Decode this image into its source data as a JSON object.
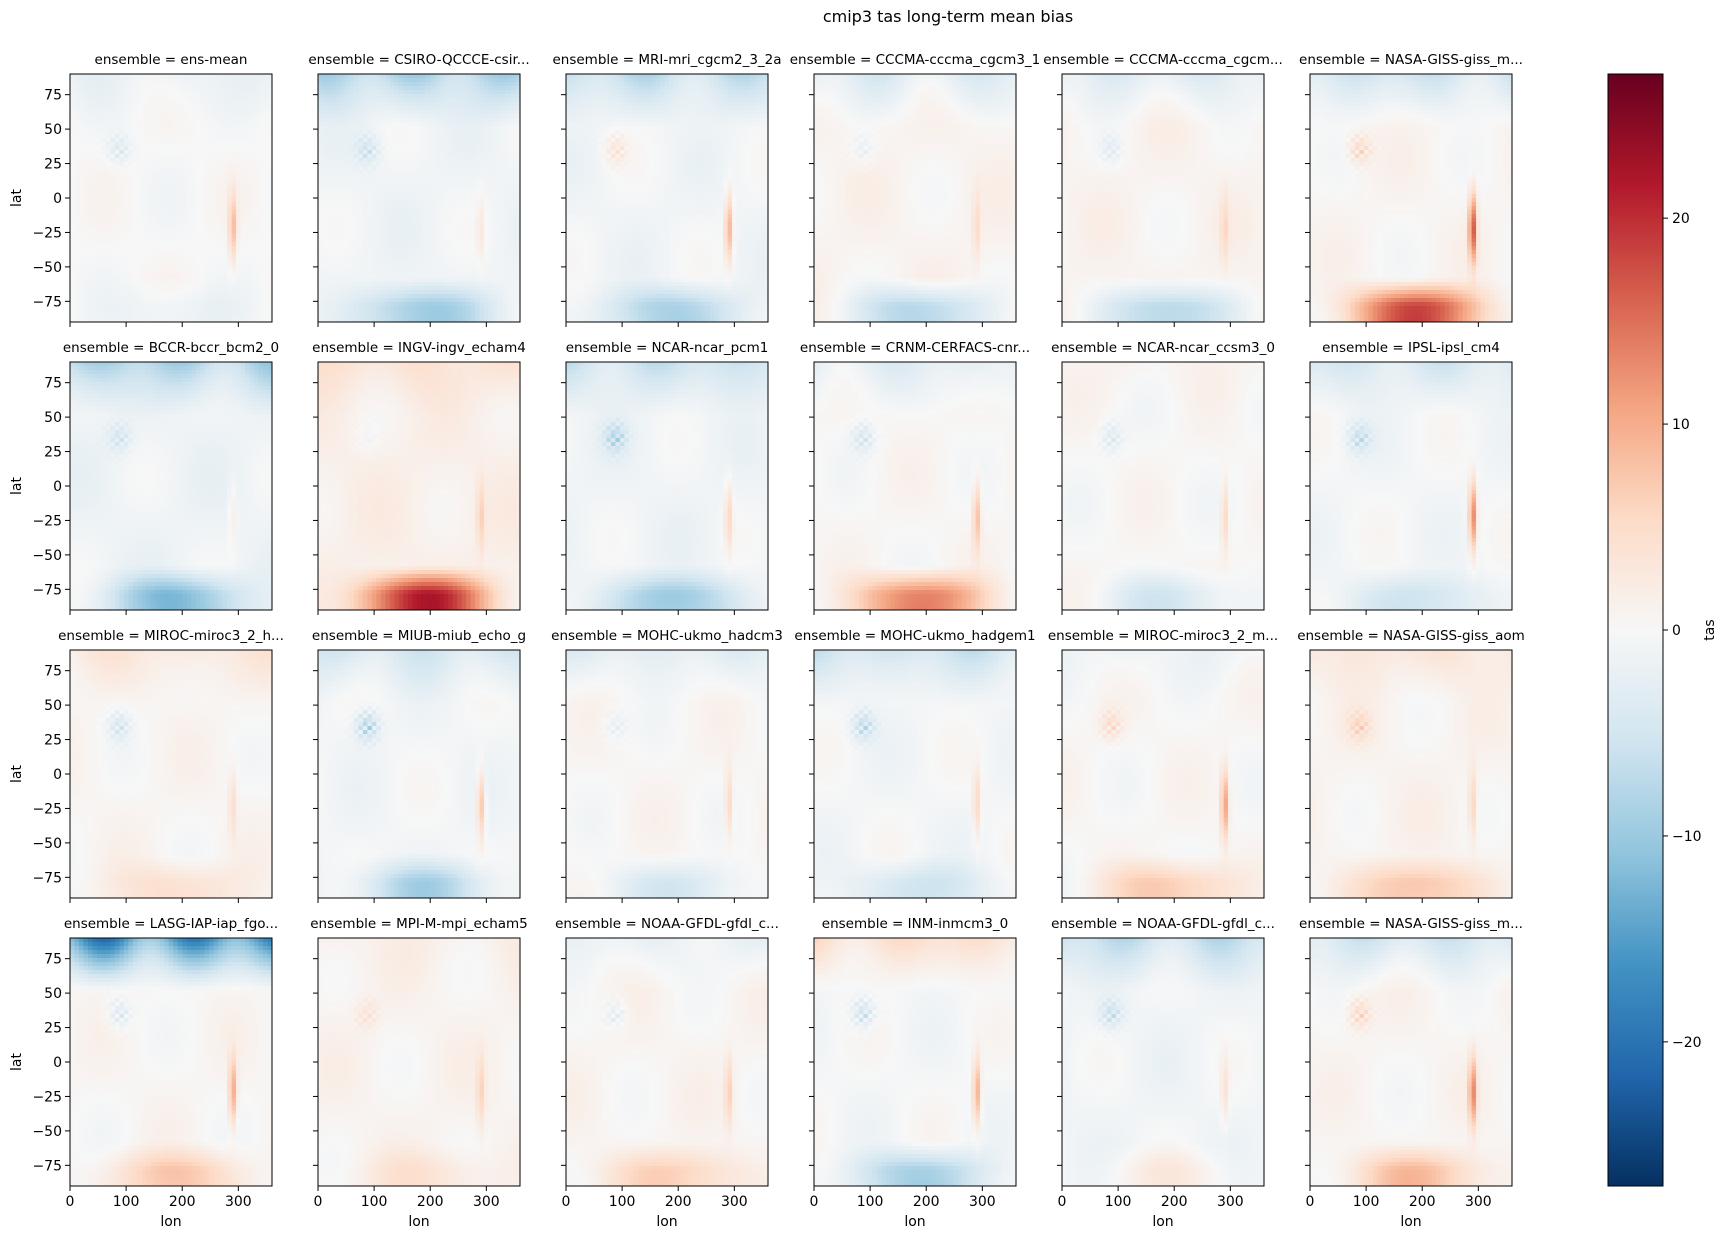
{
  "chart_data": {
    "type": "heatmap",
    "title": "cmip3 tas long-term mean bias",
    "xlabel": "lon",
    "ylabel": "lat",
    "xlim": [
      0,
      360
    ],
    "ylim": [
      -90,
      90
    ],
    "x_ticks": [
      0,
      100,
      200,
      300
    ],
    "y_ticks": [
      75,
      50,
      25,
      0,
      -25,
      -50,
      -75
    ],
    "colorbar": {
      "label": "tas",
      "colormap": "RdBu_r",
      "vmin": -27,
      "vmax": 27,
      "ticks": [
        -20,
        -10,
        0,
        10,
        20
      ],
      "tick_labels": [
        "−20",
        "−10",
        "0",
        "10",
        "20"
      ]
    },
    "panels": [
      {
        "title": "ensemble = ens-mean",
        "global_bias": 0.0,
        "arctic_bias": -2,
        "antarctic_bias": -2,
        "andes_bias": 8,
        "plateau_bias": -5
      },
      {
        "title": "ensemble = CSIRO-QCCCE-csir...",
        "global_bias": -1.0,
        "arctic_bias": -9,
        "antarctic_bias": -9,
        "andes_bias": 3,
        "plateau_bias": -6
      },
      {
        "title": "ensemble = MRI-mri_cgcm2_3_2a",
        "global_bias": -0.8,
        "arctic_bias": -7,
        "antarctic_bias": -8,
        "andes_bias": 10,
        "plateau_bias": 5
      },
      {
        "title": "ensemble = CCCMA-cccma_cgcm3_1",
        "global_bias": 0.8,
        "arctic_bias": -5,
        "antarctic_bias": -9,
        "andes_bias": 4,
        "plateau_bias": -4
      },
      {
        "title": "ensemble = CCCMA-cccma_cgcm...",
        "global_bias": 0.8,
        "arctic_bias": -5,
        "antarctic_bias": -9,
        "andes_bias": 4,
        "plateau_bias": -4
      },
      {
        "title": "ensemble = NASA-GISS-giss_m...",
        "global_bias": 0.5,
        "arctic_bias": -7,
        "antarctic_bias": 18,
        "andes_bias": 16,
        "plateau_bias": 7
      },
      {
        "title": "ensemble = BCCR-bccr_bcm2_0",
        "global_bias": -1.2,
        "arctic_bias": -9,
        "antarctic_bias": -11,
        "andes_bias": 3,
        "plateau_bias": -5
      },
      {
        "title": "ensemble = INGV-ingv_echam4",
        "global_bias": 1.5,
        "arctic_bias": 3,
        "antarctic_bias": 20,
        "andes_bias": 5,
        "plateau_bias": -2
      },
      {
        "title": "ensemble = NCAR-ncar_pcm1",
        "global_bias": -1.0,
        "arctic_bias": -6,
        "antarctic_bias": -9,
        "andes_bias": 6,
        "plateau_bias": -8
      },
      {
        "title": "ensemble = CRNM-CERFACS-cnr...",
        "global_bias": 0.3,
        "arctic_bias": -4,
        "antarctic_bias": 14,
        "andes_bias": 8,
        "plateau_bias": -6
      },
      {
        "title": "ensemble = NCAR-ncar_ccsm3_0",
        "global_bias": 0.2,
        "arctic_bias": 1,
        "antarctic_bias": -5,
        "andes_bias": 6,
        "plateau_bias": -5
      },
      {
        "title": "ensemble = IPSL-ipsl_cm4",
        "global_bias": -0.5,
        "arctic_bias": -5,
        "antarctic_bias": -5,
        "andes_bias": 14,
        "plateau_bias": -7
      },
      {
        "title": "ensemble = MIROC-miroc3_2_h...",
        "global_bias": 0.5,
        "arctic_bias": 3,
        "antarctic_bias": 4,
        "andes_bias": 4,
        "plateau_bias": -6
      },
      {
        "title": "ensemble = MIUB-miub_echo_g",
        "global_bias": -0.6,
        "arctic_bias": -5,
        "antarctic_bias": -8,
        "andes_bias": 9,
        "plateau_bias": -10
      },
      {
        "title": "ensemble = MOHC-ukmo_hadcm3",
        "global_bias": 0.3,
        "arctic_bias": -4,
        "antarctic_bias": -5,
        "andes_bias": 6,
        "plateau_bias": -4
      },
      {
        "title": "ensemble = MOHC-ukmo_hadgem1",
        "global_bias": -0.5,
        "arctic_bias": -6,
        "antarctic_bias": -5,
        "andes_bias": 6,
        "plateau_bias": -8
      },
      {
        "title": "ensemble = MIROC-miroc3_2_m...",
        "global_bias": 0.3,
        "arctic_bias": -2,
        "antarctic_bias": 7,
        "andes_bias": 11,
        "plateau_bias": 6
      },
      {
        "title": "ensemble = NASA-GISS-giss_aom",
        "global_bias": 0.8,
        "arctic_bias": 3,
        "antarctic_bias": 7,
        "andes_bias": 6,
        "plateau_bias": 6
      },
      {
        "title": "ensemble = LASG-IAP-iap_fgo...",
        "global_bias": 0.4,
        "arctic_bias": -21,
        "antarctic_bias": 7,
        "andes_bias": 10,
        "plateau_bias": -6
      },
      {
        "title": "ensemble = MPI-M-mpi_echam5",
        "global_bias": 0.8,
        "arctic_bias": 1,
        "antarctic_bias": 3,
        "andes_bias": 5,
        "plateau_bias": 4
      },
      {
        "title": "ensemble = NOAA-GFDL-gfdl_c...",
        "global_bias": 0.6,
        "arctic_bias": -3,
        "antarctic_bias": 6,
        "andes_bias": 6,
        "plateau_bias": -5
      },
      {
        "title": "ensemble = INM-inmcm3_0",
        "global_bias": -0.3,
        "arctic_bias": 6,
        "antarctic_bias": -9,
        "andes_bias": 10,
        "plateau_bias": -8
      },
      {
        "title": "ensemble = NOAA-GFDL-gfdl_c...",
        "global_bias": -0.8,
        "arctic_bias": -7,
        "antarctic_bias": 3,
        "andes_bias": 4,
        "plateau_bias": -7
      },
      {
        "title": "ensemble = NASA-GISS-giss_m...",
        "global_bias": 0.5,
        "arctic_bias": -7,
        "antarctic_bias": 8,
        "andes_bias": 12,
        "plateau_bias": 7
      }
    ]
  }
}
